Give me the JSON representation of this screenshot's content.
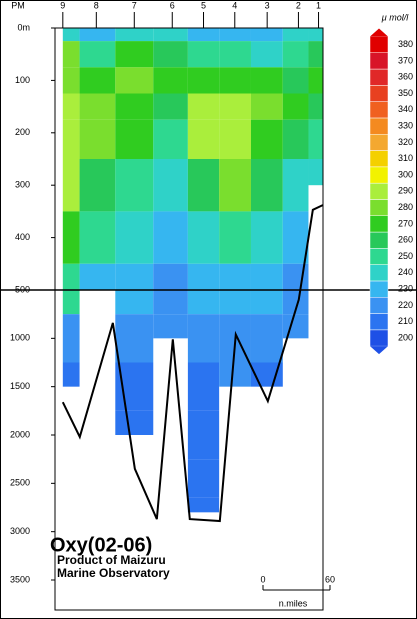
{
  "chart_data": {
    "type": "section",
    "x_label": "PM",
    "stations": [
      "9",
      "8",
      "7",
      "6",
      "5",
      "4",
      "3",
      "2",
      "1"
    ],
    "station_x": [
      0,
      30,
      64,
      98,
      126,
      154,
      183,
      211,
      229
    ],
    "xlim": [
      -7,
      233
    ],
    "depths": [
      0,
      50,
      100,
      150,
      200,
      300,
      400,
      500,
      1000,
      1500,
      2000,
      2500,
      2800
    ],
    "values": [
      [
        240,
        275,
        278,
        285,
        290,
        285,
        270,
        250,
        215,
        210,
        null,
        null,
        null
      ],
      [
        230,
        250,
        270,
        275,
        275,
        260,
        245,
        230,
        null,
        null,
        null,
        null,
        null
      ],
      [
        240,
        265,
        275,
        270,
        265,
        250,
        235,
        225,
        215,
        212,
        210,
        null,
        null
      ],
      [
        235,
        255,
        270,
        260,
        250,
        240,
        230,
        222,
        215,
        null,
        null,
        null,
        null
      ],
      [
        230,
        245,
        265,
        285,
        290,
        260,
        240,
        225,
        215,
        212,
        210,
        208,
        208
      ],
      [
        225,
        245,
        265,
        285,
        290,
        275,
        250,
        230,
        220,
        215,
        null,
        null,
        null
      ],
      [
        230,
        240,
        265,
        275,
        270,
        255,
        240,
        225,
        215,
        210,
        null,
        null,
        null
      ],
      [
        240,
        250,
        260,
        265,
        255,
        240,
        230,
        220,
        215,
        null,
        null,
        null,
        null
      ],
      [
        240,
        255,
        265,
        260,
        245,
        240,
        null,
        null,
        null,
        null,
        null,
        null,
        null
      ]
    ],
    "bottom": {
      "x": [
        0,
        15.2,
        44.8,
        64.5,
        84.2,
        98.5,
        113.7,
        140.6,
        154.9,
        183.6,
        211.3,
        223.9,
        232.8
      ],
      "depth": [
        1660,
        2020,
        840,
        2350,
        2870,
        1010,
        2870,
        2890,
        960,
        1650,
        600,
        347,
        338
      ]
    },
    "ylim": [
      0,
      3500
    ],
    "ybreak": 500,
    "yticks": [
      {
        "value": 0,
        "label": "0m"
      },
      100,
      200,
      300,
      400,
      500,
      1000,
      1500,
      2000,
      2500,
      3000,
      3500
    ],
    "colorbar": {
      "unit": "μ mol/l",
      "ticks": [
        200,
        210,
        220,
        230,
        240,
        250,
        260,
        270,
        280,
        290,
        300,
        310,
        320,
        330,
        340,
        350,
        360,
        370,
        380
      ],
      "colors": [
        "#1e50e6",
        "#2b74f0",
        "#3a92f2",
        "#36b6f0",
        "#2fd2c8",
        "#2ed890",
        "#28c85a",
        "#30cc20",
        "#7ade2e",
        "#aaee3c",
        "#f2f200",
        "#f4d000",
        "#f4a830",
        "#f48a20",
        "#f06020",
        "#e84020",
        "#e02828",
        "#d81428",
        "#e00000"
      ]
    },
    "title": "Oxy(02-06)",
    "credit_1": "Product of Maizuru",
    "credit_2": "Marine Observatory",
    "scale": {
      "ticks": [
        0,
        60
      ],
      "unit": "n.miles"
    }
  }
}
